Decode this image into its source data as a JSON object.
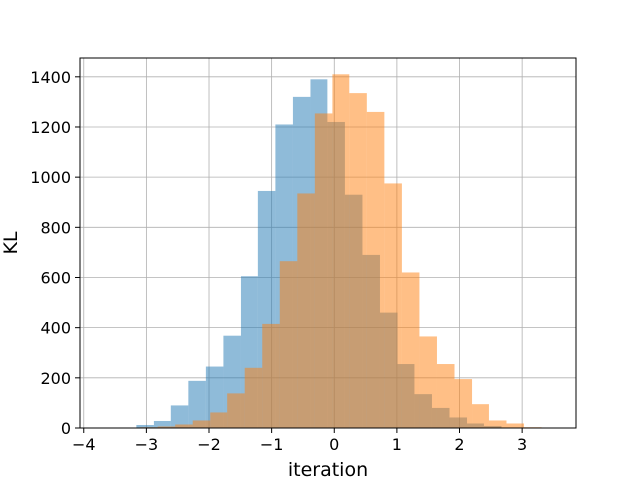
{
  "chart_data": {
    "type": "bar",
    "subtype": "overlapping-histogram",
    "title": "",
    "xlabel": "iteration",
    "ylabel": "KL",
    "xlim": [
      -4.06,
      3.86
    ],
    "ylim": [
      0,
      1475
    ],
    "xticks": [
      -4,
      -3,
      -2,
      -1,
      0,
      1,
      2,
      3
    ],
    "xtick_labels": [
      "−4",
      "−3",
      "−2",
      "−1",
      "0",
      "1",
      "2",
      "3"
    ],
    "yticks": [
      0,
      200,
      400,
      600,
      800,
      1000,
      1200,
      1400
    ],
    "grid": true,
    "legend": "none",
    "series": [
      {
        "color": "#1f77b4",
        "opacity": 0.5,
        "bin_edges": [
          -3.71,
          -3.44,
          -3.16,
          -2.88,
          -2.61,
          -2.33,
          -2.05,
          -1.77,
          -1.49,
          -1.22,
          -0.94,
          -0.66,
          -0.38,
          -0.11,
          0.17,
          0.45,
          0.73,
          1.01,
          1.28,
          1.56,
          1.84,
          2.12,
          2.39,
          2.67
        ],
        "counts": [
          1,
          2,
          12,
          28,
          90,
          188,
          245,
          368,
          605,
          945,
          1210,
          1320,
          1390,
          1220,
          930,
          690,
          460,
          255,
          135,
          80,
          42,
          18,
          8
        ]
      },
      {
        "color": "#ff7f0e",
        "opacity": 0.5,
        "bin_edges": [
          -3.1,
          -2.82,
          -2.54,
          -2.26,
          -1.98,
          -1.71,
          -1.43,
          -1.15,
          -0.87,
          -0.59,
          -0.31,
          -0.03,
          0.24,
          0.52,
          0.8,
          1.08,
          1.36,
          1.64,
          1.92,
          2.2,
          2.47,
          2.75,
          3.03,
          3.31,
          3.58
        ],
        "counts": [
          3,
          6,
          14,
          30,
          62,
          138,
          240,
          415,
          665,
          935,
          1254,
          1410,
          1335,
          1260,
          975,
          620,
          365,
          255,
          195,
          95,
          30,
          18,
          3,
          1
        ]
      }
    ]
  }
}
